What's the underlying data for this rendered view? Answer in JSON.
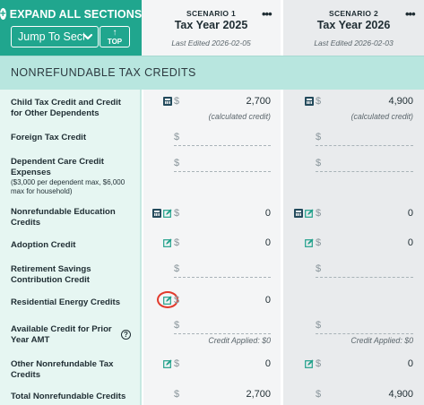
{
  "toolbar": {
    "expand_label": "EXPAND ALL SECTIONS",
    "jump_label": "Jump To Section",
    "top_label": "TOP"
  },
  "scenarios": [
    {
      "label": "SCENARIO 1",
      "year": "Tax Year 2025",
      "edited": "Last Edited 2026-02-05",
      "menu": "•••"
    },
    {
      "label": "SCENARIO 2",
      "year": "Tax Year 2026",
      "edited": "Last Edited 2026-02-03",
      "menu": "•••"
    }
  ],
  "section": {
    "title": "NONREFUNDABLE TAX CREDITS"
  },
  "currency": "$",
  "rows": {
    "child": {
      "label": "Child Tax Credit and Credit for Other Dependents",
      "s1": "2,700",
      "s2": "4,900",
      "s1_note": "(calculated credit)",
      "s2_note": "(calculated credit)"
    },
    "foreign": {
      "label": "Foreign Tax Credit"
    },
    "dependent": {
      "label": "Dependent Care Credit Expenses",
      "sub": "($3,000 per dependent max, $6,000 max for household)"
    },
    "education": {
      "label": "Nonrefundable Education Credits",
      "s1": "0",
      "s2": "0"
    },
    "adoption": {
      "label": "Adoption Credit",
      "s1": "0",
      "s2": "0"
    },
    "retirement": {
      "label": "Retirement Savings Contribution Credit"
    },
    "residential": {
      "label": "Residential Energy Credits",
      "s1": "0"
    },
    "amt": {
      "label": "Available Credit for Prior Year AMT",
      "help": "?",
      "s1_note": "Credit Applied: $0",
      "s2_note": "Credit Applied: $0"
    },
    "other": {
      "label": "Other Nonrefundable Tax Credits",
      "s1": "0",
      "s2": "0"
    },
    "total": {
      "label": "Total Nonrefundable Credits",
      "s1": "2,700",
      "s2": "4,900"
    }
  },
  "icons": {
    "plus": "+",
    "chevron": "chevron-down-icon",
    "top_arrow": "↑",
    "calculator": "calculator-icon",
    "edit": "edit-icon",
    "help": "help-icon"
  },
  "colors": {
    "brand": "#20a68e",
    "section": "#b8e6df",
    "label_column": "#e6f6f2",
    "scenario1": "#f4f5f6",
    "scenario2": "#e9ebed",
    "calc_icon": "#234a5c",
    "edit_icon": "#1fa08a",
    "highlight": "#e23a2c"
  }
}
